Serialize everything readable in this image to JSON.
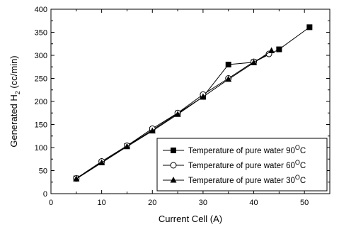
{
  "chart_data": {
    "type": "line",
    "title": "",
    "xlabel": "Current Cell (A)",
    "ylabel": {
      "main": "Generated H",
      "subscript": "2",
      "unit": " (cc/min)"
    },
    "xlim": [
      0,
      55
    ],
    "ylim": [
      0,
      400
    ],
    "xticks": [
      0,
      10,
      20,
      30,
      40,
      50
    ],
    "yticks": [
      0,
      50,
      100,
      150,
      200,
      250,
      300,
      350,
      400
    ],
    "grid": false,
    "legend_position": "bottom-right",
    "series": [
      {
        "name": "Temperature of pure water 90",
        "name_sup": "O",
        "name_unit": "C",
        "marker": "square",
        "x": [
          5,
          10,
          15,
          20,
          25,
          30,
          35,
          40,
          45,
          51
        ],
        "y": [
          33,
          68,
          103,
          138,
          174,
          210,
          280,
          285,
          313,
          361
        ]
      },
      {
        "name": "Temperature of pure water 60",
        "name_sup": "O",
        "name_unit": "C",
        "marker": "circle",
        "x": [
          5,
          10,
          15,
          20,
          25,
          30,
          35,
          40,
          43
        ],
        "y": [
          33,
          70,
          104,
          141,
          175,
          215,
          250,
          286,
          303
        ]
      },
      {
        "name": "Temperature of pure water 30",
        "name_sup": "O",
        "name_unit": "C",
        "marker": "triangle",
        "x": [
          5,
          10,
          15,
          20,
          25,
          30,
          35,
          40,
          43.5
        ],
        "y": [
          32,
          67,
          102,
          136,
          172,
          210,
          248,
          284,
          310
        ]
      }
    ]
  }
}
